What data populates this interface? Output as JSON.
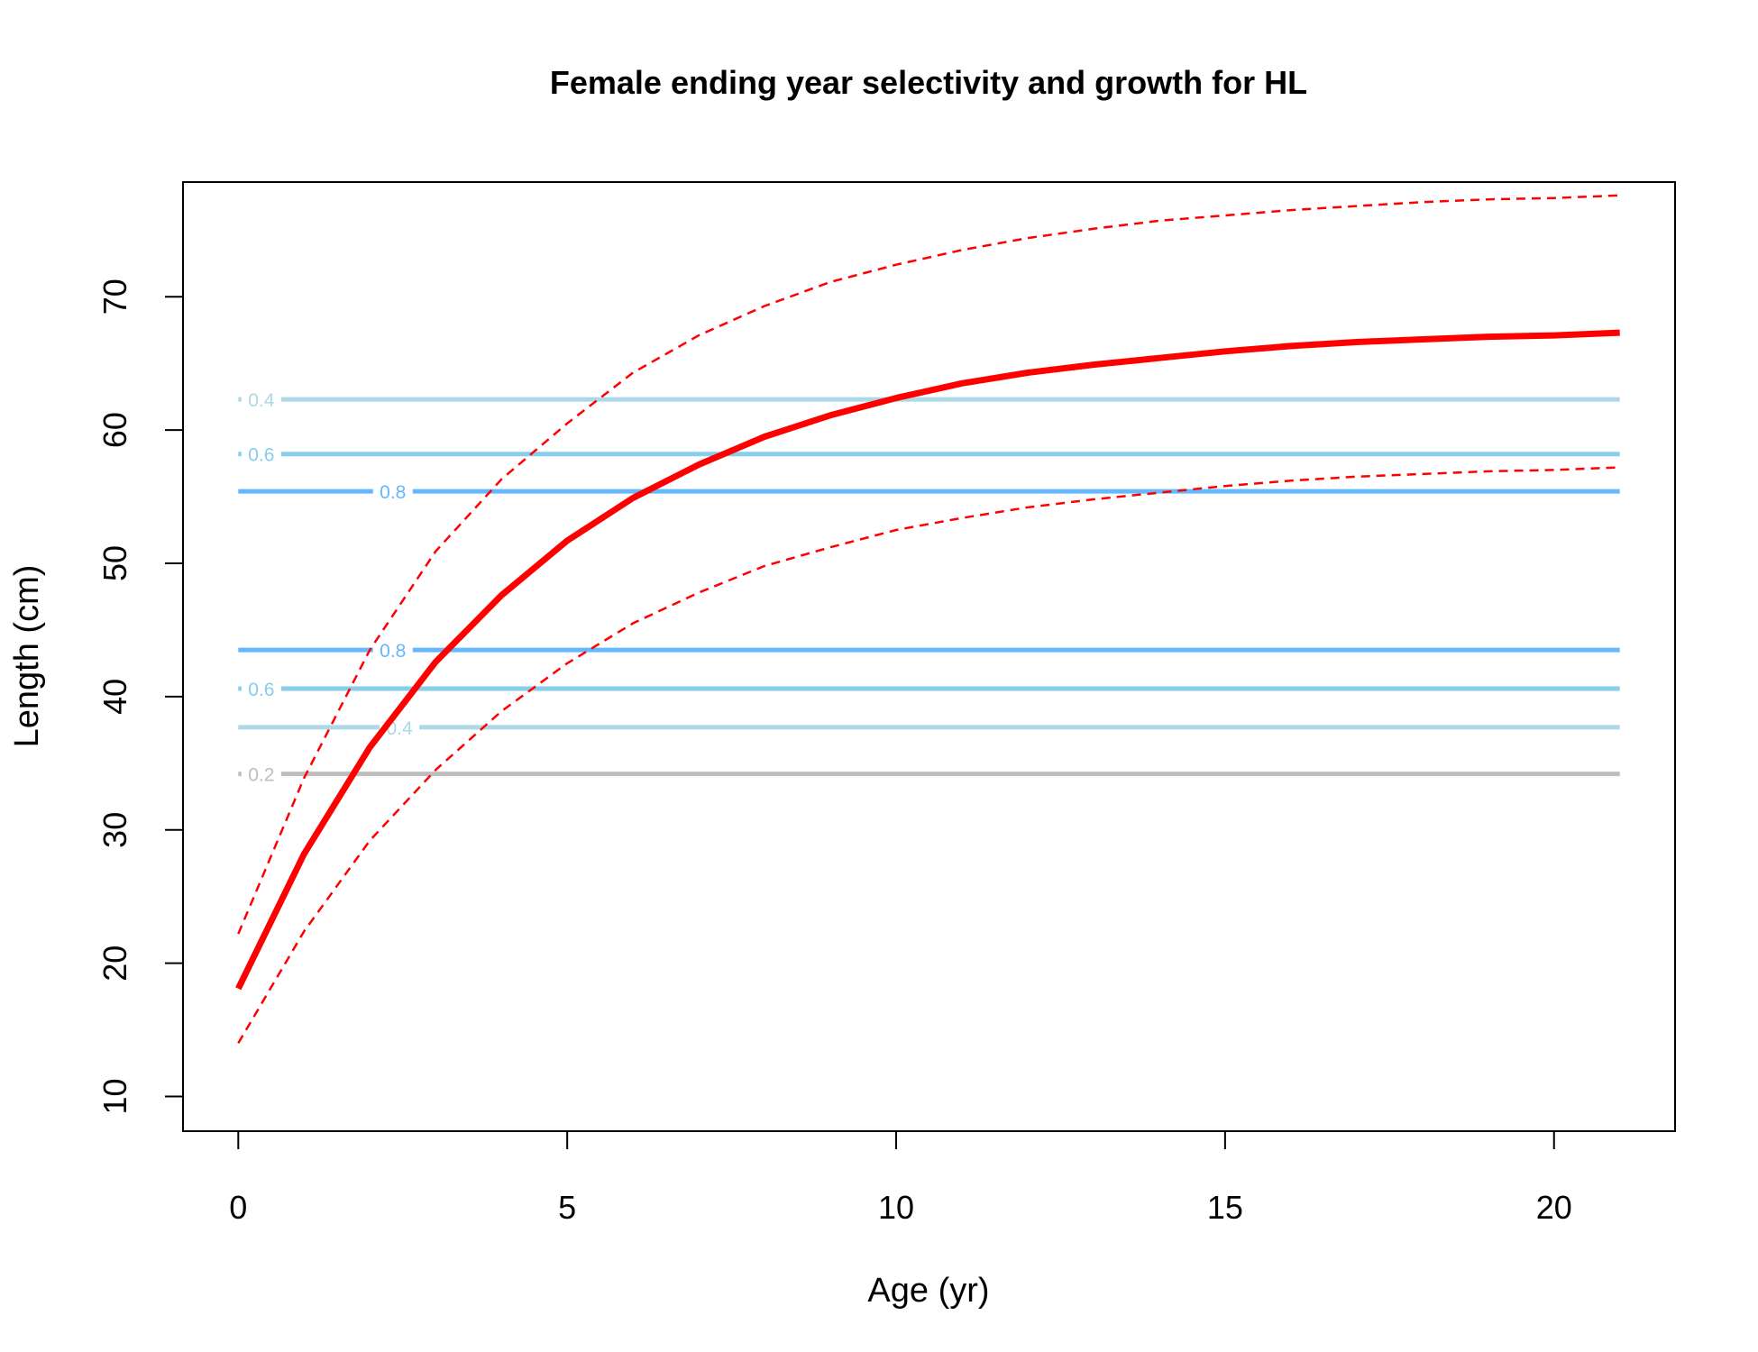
{
  "chart_data": {
    "type": "line",
    "title": "Female ending year selectivity and growth for HL",
    "xlabel": "Age (yr)",
    "ylabel": "Length (cm)",
    "xlim": [
      -0.84,
      21.84
    ],
    "ylim": [
      7.4,
      78.6
    ],
    "xticks": [
      0,
      5,
      10,
      15,
      20
    ],
    "yticks": [
      10,
      20,
      30,
      40,
      50,
      60,
      70
    ],
    "grid": false,
    "legend": "none",
    "series": [
      {
        "role": "mean",
        "style": "solid-thick",
        "color": "#ff0000",
        "x": [
          0,
          1,
          2,
          3,
          4,
          5,
          6,
          7,
          8,
          9,
          10,
          11,
          12,
          13,
          14,
          15,
          16,
          17,
          18,
          19,
          20,
          21
        ],
        "y": [
          18.1,
          28.2,
          36.2,
          42.6,
          47.6,
          51.7,
          54.9,
          57.4,
          59.5,
          61.1,
          62.4,
          63.5,
          64.3,
          64.9,
          65.4,
          65.9,
          66.3,
          66.6,
          66.8,
          67.0,
          67.1,
          67.3
        ]
      },
      {
        "role": "upper",
        "style": "dashed",
        "color": "#ff0000",
        "x": [
          0,
          1,
          2,
          3,
          4,
          5,
          6,
          7,
          8,
          9,
          10,
          11,
          12,
          13,
          14,
          15,
          16,
          17,
          18,
          19,
          20,
          21
        ],
        "y": [
          22.2,
          33.9,
          43.5,
          50.9,
          56.3,
          60.5,
          64.3,
          67.1,
          69.3,
          71.1,
          72.4,
          73.5,
          74.4,
          75.1,
          75.7,
          76.1,
          76.5,
          76.8,
          77.1,
          77.3,
          77.4,
          77.6
        ]
      },
      {
        "role": "lower",
        "style": "dashed",
        "color": "#ff0000",
        "x": [
          0,
          1,
          2,
          3,
          4,
          5,
          6,
          7,
          8,
          9,
          10,
          11,
          12,
          13,
          14,
          15,
          16,
          17,
          18,
          19,
          20,
          21
        ],
        "y": [
          14.0,
          22.4,
          29.2,
          34.5,
          38.9,
          42.5,
          45.5,
          47.8,
          49.8,
          51.2,
          52.5,
          53.4,
          54.2,
          54.8,
          55.3,
          55.8,
          56.2,
          56.5,
          56.7,
          56.9,
          57.0,
          57.2
        ]
      }
    ],
    "contours": [
      {
        "level": "0.2",
        "y": 34.2,
        "x_start": 0,
        "x_end": 21,
        "color": "#bebebe",
        "label_x": 0.35
      },
      {
        "level": "0.4",
        "y": 37.7,
        "x_start": 0,
        "x_end": 21,
        "color": "#add8e6",
        "label_x": 2.45
      },
      {
        "level": "0.6",
        "y": 40.6,
        "x_start": 0,
        "x_end": 21,
        "color": "#87ceeb",
        "label_x": 0.35
      },
      {
        "level": "0.8",
        "y": 43.5,
        "x_start": 0,
        "x_end": 21,
        "color": "#63b8ff",
        "label_x": 2.35
      },
      {
        "level": "0.8",
        "y": 55.4,
        "x_start": 0,
        "x_end": 21,
        "color": "#63b8ff",
        "label_x": 2.35
      },
      {
        "level": "0.6",
        "y": 58.2,
        "x_start": 0,
        "x_end": 21,
        "color": "#87ceeb",
        "label_x": 0.35
      },
      {
        "level": "0.4",
        "y": 62.3,
        "x_start": 0,
        "x_end": 21,
        "color": "#add8e6",
        "label_x": 0.35
      }
    ]
  }
}
